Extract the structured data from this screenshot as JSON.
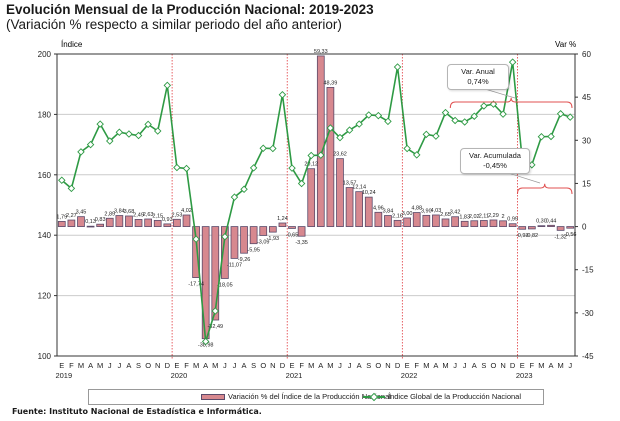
{
  "title": "Evolución Mensual de la Producción Nacional: 2019-2023",
  "subtitle": "(Variación % respecto a similar periodo del año anterior)",
  "source": "Fuente: Instituto Nacional de Estadística e Informática.",
  "callouts": {
    "anual": {
      "label": "Var. Anual",
      "value": "0,74%"
    },
    "acumulada": {
      "label": "Var. Acumulada",
      "value": "-0,45%"
    }
  },
  "colors": {
    "bar_fill": "#d7888f",
    "bar_stroke": "#5a4a6a",
    "line": "#2e9a44",
    "year_divider": "#e0393e",
    "brace": "#e05050"
  },
  "chart_data": {
    "type": "bar+line",
    "title": "Evolución Mensual de la Producción Nacional: 2019-2023",
    "subtitle": "(Variación % respecto a similar periodo del año anterior)",
    "ylabel_left": "Índice",
    "ylabel_right": "Var %",
    "ylim_left": [
      100,
      200
    ],
    "yticks_left": [
      100,
      120,
      140,
      160,
      180,
      200
    ],
    "ylim_right": [
      -45,
      60
    ],
    "yticks_right": [
      -45,
      -30,
      -15,
      0,
      15,
      30,
      45,
      60
    ],
    "grid": true,
    "legend_position": "bottom",
    "month_labels": [
      "E",
      "F",
      "M",
      "A",
      "M",
      "J",
      "J",
      "A",
      "S",
      "O",
      "N",
      "D",
      "E",
      "F",
      "M",
      "A",
      "M",
      "J",
      "J",
      "A",
      "S",
      "O",
      "N",
      "D",
      "E",
      "F",
      "M",
      "A",
      "M",
      "J",
      "J",
      "A",
      "S",
      "O",
      "N",
      "D",
      "E",
      "F",
      "M",
      "A",
      "M",
      "J",
      "J",
      "A",
      "S",
      "O",
      "N",
      "D",
      "E",
      "F",
      "M",
      "A",
      "M",
      "J"
    ],
    "year_labels": [
      {
        "label": "2019",
        "index": 0
      },
      {
        "label": "2020",
        "index": 12
      },
      {
        "label": "2021",
        "index": 24
      },
      {
        "label": "2022",
        "index": 36
      },
      {
        "label": "2023",
        "index": 48
      }
    ],
    "series": [
      {
        "name": "Variación % del Índice de la Producción Nacional",
        "type": "bar",
        "axis": "right",
        "values": [
          1.79,
          2.27,
          3.45,
          0.13,
          0.83,
          2.89,
          3.84,
          3.68,
          2.49,
          2.63,
          2.15,
          0.93,
          2.53,
          4.02,
          -17.74,
          -38.98,
          -32.49,
          -18.05,
          -11.07,
          -9.26,
          -5.95,
          -3.09,
          -1.93,
          1.24,
          -0.65,
          -3.35,
          20.12,
          59.33,
          48.39,
          23.62,
          13.57,
          12.14,
          10.24,
          4.96,
          3.84,
          2.16,
          3.0,
          4.88,
          3.9,
          4.03,
          2.65,
          3.42,
          1.83,
          2.02,
          2.11,
          2.29,
          2.0,
          0.99,
          -0.93,
          -0.82,
          0.3,
          0.44,
          -1.32,
          -0.56
        ],
        "labels": [
          "1,79",
          "2,27",
          "3,45",
          "0,13",
          "0,83",
          "2,89",
          "3,84",
          "3,68",
          "2,49",
          "2,63",
          "2,15",
          "0,93",
          "2,53",
          "4,02",
          "-17,74",
          "-38,98",
          "-32,49",
          "-18,05",
          "-11,07",
          "-9,26",
          "-5,95",
          "-3,09",
          "-1,93",
          "1,24",
          "-0,65",
          "-3,35",
          "20,12",
          "59,33",
          "48,39",
          "23,62",
          "13,57",
          "12,14",
          "10,24",
          "4,96",
          "3,84",
          "2,16",
          "3,00",
          "4,88",
          "3,90",
          "4,03",
          "2,65",
          "3,42",
          "1,83",
          "2,02",
          "2,11",
          "2,29",
          "2",
          "0,99",
          "-0,93",
          "-0,82",
          "0,30",
          "0,44",
          "-1,32",
          "-0,56"
        ]
      },
      {
        "name": "Índice Global de la Producción Nacional",
        "type": "line",
        "axis": "left",
        "values": [
          158.2,
          155.5,
          167.6,
          170.0,
          176.8,
          171.2,
          174.1,
          173.5,
          173.0,
          176.7,
          174.5,
          189.6,
          162.4,
          162.1,
          138.7,
          104.8,
          114.9,
          139.5,
          152.6,
          155.2,
          162.3,
          168.8,
          168.7,
          186.5,
          162.2,
          157.1,
          166.4,
          166.5,
          175.5,
          172.3,
          174.8,
          176.8,
          179.8,
          179.6,
          177.7,
          195.7,
          168.7,
          166.6,
          173.4,
          172.8,
          180.6,
          178.0,
          177.5,
          179.4,
          182.8,
          183.4,
          180.1,
          197.3,
          165.0,
          163.3,
          172.6,
          172.7,
          180.2,
          179.1
        ]
      }
    ],
    "annotations": [
      {
        "text": "Var. Anual 0,74%",
        "type": "brace",
        "range": "2022 J–2023 J"
      },
      {
        "text": "Var. Acumulada -0,45%",
        "type": "brace",
        "range": "2023 E–2023 J"
      }
    ]
  }
}
